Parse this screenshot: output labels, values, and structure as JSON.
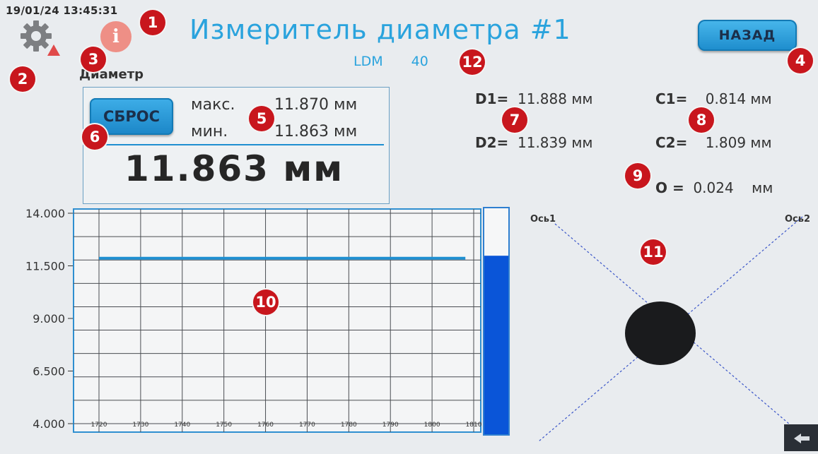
{
  "status": {
    "datetime": "19/01/24 13:45:31"
  },
  "header": {
    "title": "Измеритель диаметра #1",
    "model": "LDM",
    "model_number": "40",
    "back_label": "НАЗАД"
  },
  "icons": {
    "settings": "gear-icon",
    "warning": "warning-icon",
    "info": "info-icon",
    "info_glyph": "i",
    "corner": "exit-arrow-icon"
  },
  "measurement": {
    "section_label": "Диаметр",
    "reset_label": "СБРОС",
    "max_label": "макс.",
    "max_value": "11.870 мм",
    "min_label": "мин.",
    "min_value": "11.863 мм",
    "current_value": "11.863 мм"
  },
  "readouts": {
    "d1_label": "D1=",
    "d1_value": "11.888 мм",
    "d2_label": "D2=",
    "d2_value": "11.839 мм",
    "c1_label": "C1=",
    "c1_value": "0.814 мм",
    "c2_label": "C2=",
    "c2_value": "1.809 мм",
    "o_label": "O =",
    "o_value": "0.024",
    "o_unit": "мм"
  },
  "chart_data": {
    "type": "line",
    "title": "",
    "xlabel": "",
    "ylabel": "",
    "x_ticks": [
      1720,
      1730,
      1740,
      1750,
      1760,
      1770,
      1780,
      1790,
      1800,
      1810
    ],
    "y_ticks": [
      "14.000",
      "11.500",
      "9.000",
      "6.500",
      "4.000"
    ],
    "xlim": [
      1720,
      1810
    ],
    "ylim": [
      4.0,
      14.0
    ],
    "grid": true,
    "series": [
      {
        "x": [
          1720,
          1808
        ],
        "values": [
          11.86,
          11.86
        ],
        "color": "#1f8fd1"
      }
    ],
    "level_bar_fraction": 0.79,
    "level_bar_color": "#0a55d8"
  },
  "axis_view": {
    "axis1_label": "Ось1",
    "axis2_label": "Ось2"
  },
  "badges": [
    "1",
    "2",
    "3",
    "4",
    "5",
    "6",
    "7",
    "8",
    "9",
    "10",
    "11",
    "12"
  ],
  "colors": {
    "accent": "#2aa3dd",
    "button": "#1d8ccc",
    "badge": "#c8161d",
    "info": "#ee8f86"
  }
}
